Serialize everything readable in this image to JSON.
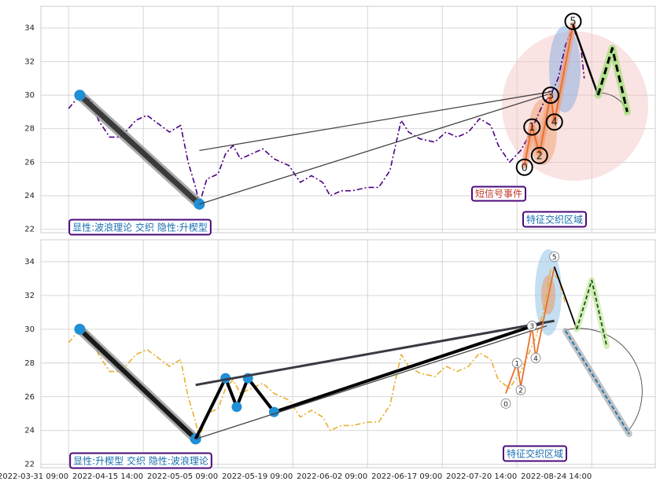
{
  "chart_data": [
    {
      "type": "line",
      "ylim": [
        21.8,
        35.3
      ],
      "yticks": [
        22,
        24,
        26,
        28,
        30,
        32,
        34
      ],
      "xlim": [
        -7.4,
        157
      ],
      "grid": true,
      "series": [
        {
          "color": "#4b0082",
          "x": [
            0,
            3,
            6,
            8,
            11,
            14,
            18,
            21,
            24,
            27,
            30,
            32,
            34,
            35,
            37,
            40,
            42,
            44,
            46,
            49,
            52,
            55,
            59,
            62,
            65,
            68,
            70,
            73,
            76,
            80,
            83,
            86,
            89,
            91,
            94,
            98,
            101,
            104,
            107,
            110,
            113,
            115,
            118,
            121,
            123,
            125,
            127,
            129,
            131,
            133,
            135,
            137,
            138
          ],
          "values": [
            29.2,
            30,
            29.7,
            28.5,
            27.5,
            27.5,
            28.5,
            28.8,
            28.3,
            27.8,
            28.2,
            26,
            24.5,
            23.5,
            25,
            25.3,
            26.5,
            27,
            26.2,
            26.5,
            26.8,
            26.2,
            25.8,
            24.8,
            25.2,
            24.8,
            24,
            24.3,
            24.3,
            24.5,
            24.5,
            25.5,
            28.5,
            27.8,
            27.4,
            27.2,
            27.8,
            27.5,
            27.8,
            28.6,
            28.2,
            27,
            26,
            26.7,
            27.5,
            28.5,
            29.5,
            30,
            31,
            33,
            34,
            33,
            31
          ]
        },
        {
          "color": "#3a3a3a",
          "x": [
            3,
            35
          ],
          "values": [
            30,
            23.5
          ]
        },
        {
          "color": "#444444",
          "x": [
            35,
            129
          ],
          "values": [
            26.7,
            30.2
          ]
        },
        {
          "color": "#444444",
          "x": [
            35,
            129
          ],
          "values": [
            23.5,
            30.1
          ]
        },
        {
          "color": "#e8702a",
          "x": [
            122,
            124,
            126,
            129,
            130,
            135
          ],
          "values": [
            25.8,
            28.2,
            26.5,
            30,
            28.4,
            34.2
          ]
        },
        {
          "color": "#000000",
          "x": [
            135,
            141.7
          ],
          "values": [
            34.2,
            30
          ]
        },
        {
          "color": "#000000",
          "x": [
            141.7,
            145.5,
            149.5
          ],
          "values": [
            30,
            32.8,
            29
          ]
        }
      ],
      "wave_labels": {
        "labels": [
          "0",
          "1",
          "2",
          "3",
          "4",
          "5"
        ],
        "x": [
          122,
          124,
          126,
          129,
          130,
          135
        ],
        "values": [
          25.7,
          28.1,
          26.4,
          30,
          28.4,
          34.4
        ]
      },
      "annotations": [
        "短信号事件",
        "特征交织区域",
        "显性:波浪理论 交织 隐性:升楔型"
      ]
    },
    {
      "type": "line",
      "ylim": [
        21.8,
        35.3
      ],
      "yticks": [
        22,
        24,
        26,
        28,
        30,
        32,
        34
      ],
      "xlim": [
        -7.4,
        157
      ],
      "grid": true,
      "xticks": [
        {
          "value": 0,
          "label": "2022-03-31 09:00"
        },
        {
          "value": 20,
          "label": "2022-04-15 14:00"
        },
        {
          "value": 40,
          "label": "2022-05-05 09:00"
        },
        {
          "value": 60,
          "label": "2022-05-19 09:00"
        },
        {
          "value": 80,
          "label": "2022-06-02 09:00"
        },
        {
          "value": 100,
          "label": "2022-06-17 09:00"
        },
        {
          "value": 120,
          "label": "2022-07-20 14:00"
        },
        {
          "value": 140,
          "label": "2022-08-24 14:00"
        }
      ],
      "series": [
        {
          "color": "#e8b030",
          "x": [
            0,
            3,
            6,
            8,
            11,
            14,
            18,
            21,
            24,
            27,
            30,
            32,
            34,
            35,
            37,
            40,
            42,
            44,
            46,
            49,
            52,
            55,
            59,
            62,
            65,
            68,
            70,
            73,
            76,
            80,
            83,
            86,
            89,
            91,
            94,
            98,
            101,
            104,
            107,
            110,
            113,
            115,
            118,
            121,
            123,
            125,
            127,
            129,
            131,
            133
          ],
          "values": [
            29.2,
            30,
            29.7,
            28.5,
            27.5,
            27.5,
            28.5,
            28.8,
            28.3,
            27.8,
            28.2,
            26,
            24.5,
            23.5,
            25,
            25.3,
            26.5,
            27,
            26.2,
            26.5,
            26.8,
            26.2,
            25.8,
            24.8,
            25.2,
            24.8,
            24,
            24.3,
            24.3,
            24.5,
            24.5,
            25.5,
            28.5,
            27.8,
            27.4,
            27.2,
            27.8,
            27.5,
            27.8,
            28.6,
            28.2,
            27,
            26.5,
            27.5,
            28.5,
            29.5,
            31,
            33.5,
            33,
            31.5
          ]
        },
        {
          "color": "#1a1a1a",
          "x": [
            3,
            34
          ],
          "values": [
            30,
            23.5
          ]
        },
        {
          "color": "#000000",
          "x": [
            34,
            42,
            45,
            48,
            55,
            127
          ],
          "values": [
            23.5,
            27.1,
            25.4,
            27.1,
            25.1,
            30.4
          ]
        },
        {
          "color": "#3a3a44",
          "x": [
            34,
            130
          ],
          "values": [
            26.7,
            30.5
          ]
        },
        {
          "color": "#444444",
          "x": [
            34,
            128
          ],
          "values": [
            23.5,
            30.2
          ]
        },
        {
          "color": "#e8702a",
          "x": [
            117,
            120,
            121,
            124,
            125,
            130
          ],
          "values": [
            26.2,
            28,
            26.6,
            30.2,
            28.3,
            33.7
          ]
        },
        {
          "color": "#000000",
          "x": [
            130,
            136
          ],
          "values": [
            33.7,
            30
          ]
        },
        {
          "color": "#0a5a0a",
          "x": [
            136,
            140,
            144
          ],
          "values": [
            30,
            32.9,
            29
          ]
        },
        {
          "color": "#1f77b4",
          "x": [
            133,
            150
          ],
          "values": [
            29.9,
            23.8
          ]
        }
      ],
      "wave_labels": {
        "labels": [
          "0",
          "1",
          "2",
          "3",
          "4",
          "5"
        ],
        "x": [
          117,
          120,
          121,
          124,
          125,
          130
        ],
        "values": [
          25.6,
          28,
          26.4,
          30.2,
          28.3,
          34.3
        ]
      },
      "annotations": [
        "特征交织区域",
        "显性:升楔型 交织 隐性:波浪理论"
      ]
    }
  ]
}
